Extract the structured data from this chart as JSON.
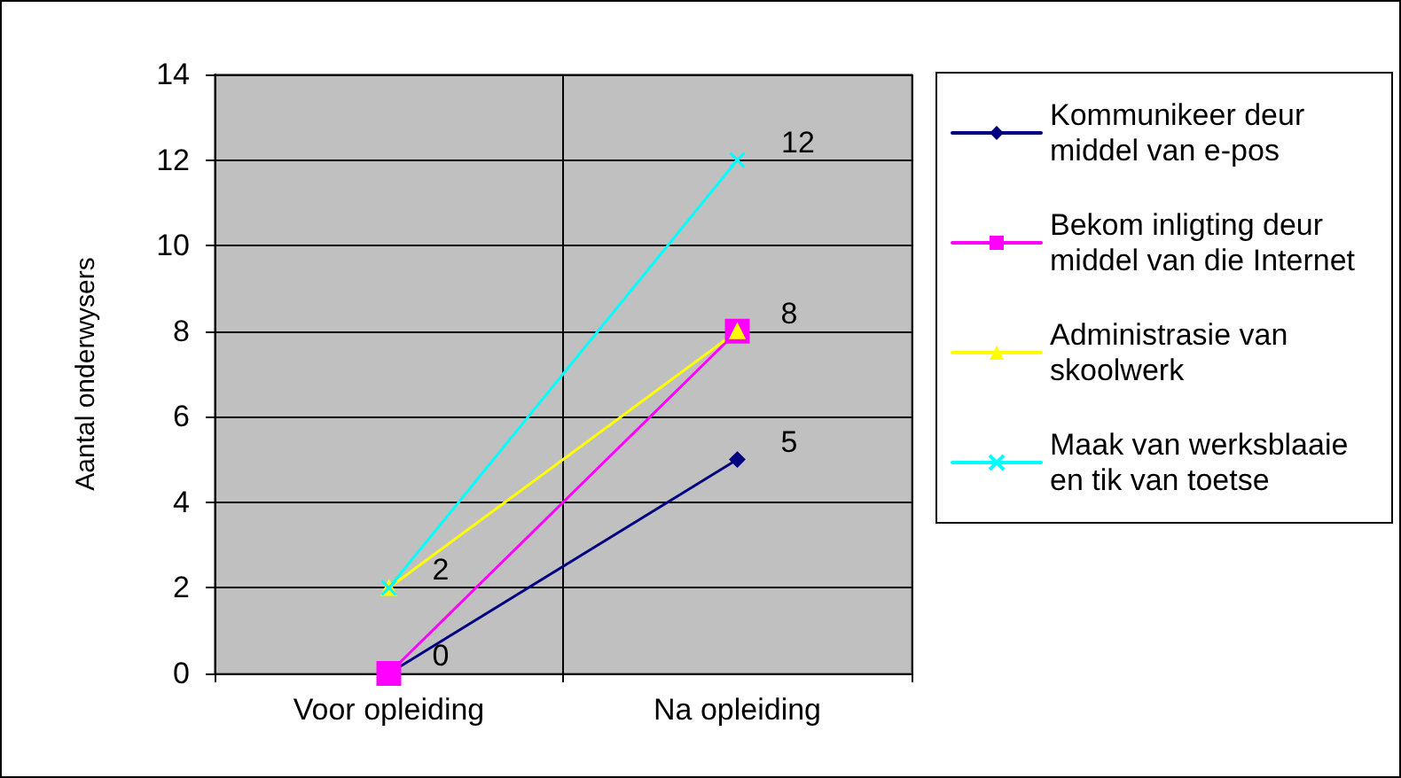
{
  "chart_data": {
    "type": "line",
    "ylabel": "Aantal onderwysers",
    "categories": [
      "Voor opleiding",
      "Na opleiding"
    ],
    "ylim": [
      0,
      14
    ],
    "yticks": [
      0,
      2,
      4,
      6,
      8,
      10,
      12,
      14
    ],
    "grid": true,
    "legend": "right",
    "series": [
      {
        "name": "Kommunikeer deur middel van e-pos",
        "color": "#000080",
        "marker": "diamond",
        "values": [
          0,
          5
        ],
        "value_labels": [
          "0",
          "5"
        ]
      },
      {
        "name": "Bekom inligting deur middel van die Internet",
        "color": "#ff00ff",
        "marker": "square",
        "values": [
          0,
          8
        ],
        "value_labels": [
          null,
          null
        ]
      },
      {
        "name": "Administrasie van skoolwerk",
        "color": "#ffff00",
        "marker": "triangle",
        "values": [
          2,
          8
        ],
        "value_labels": [
          "2",
          "8"
        ]
      },
      {
        "name": "Maak van werksblaaie en tik van toetse",
        "color": "#00ffff",
        "marker": "cross",
        "values": [
          2,
          12
        ],
        "value_labels": [
          null,
          "12"
        ]
      }
    ]
  }
}
